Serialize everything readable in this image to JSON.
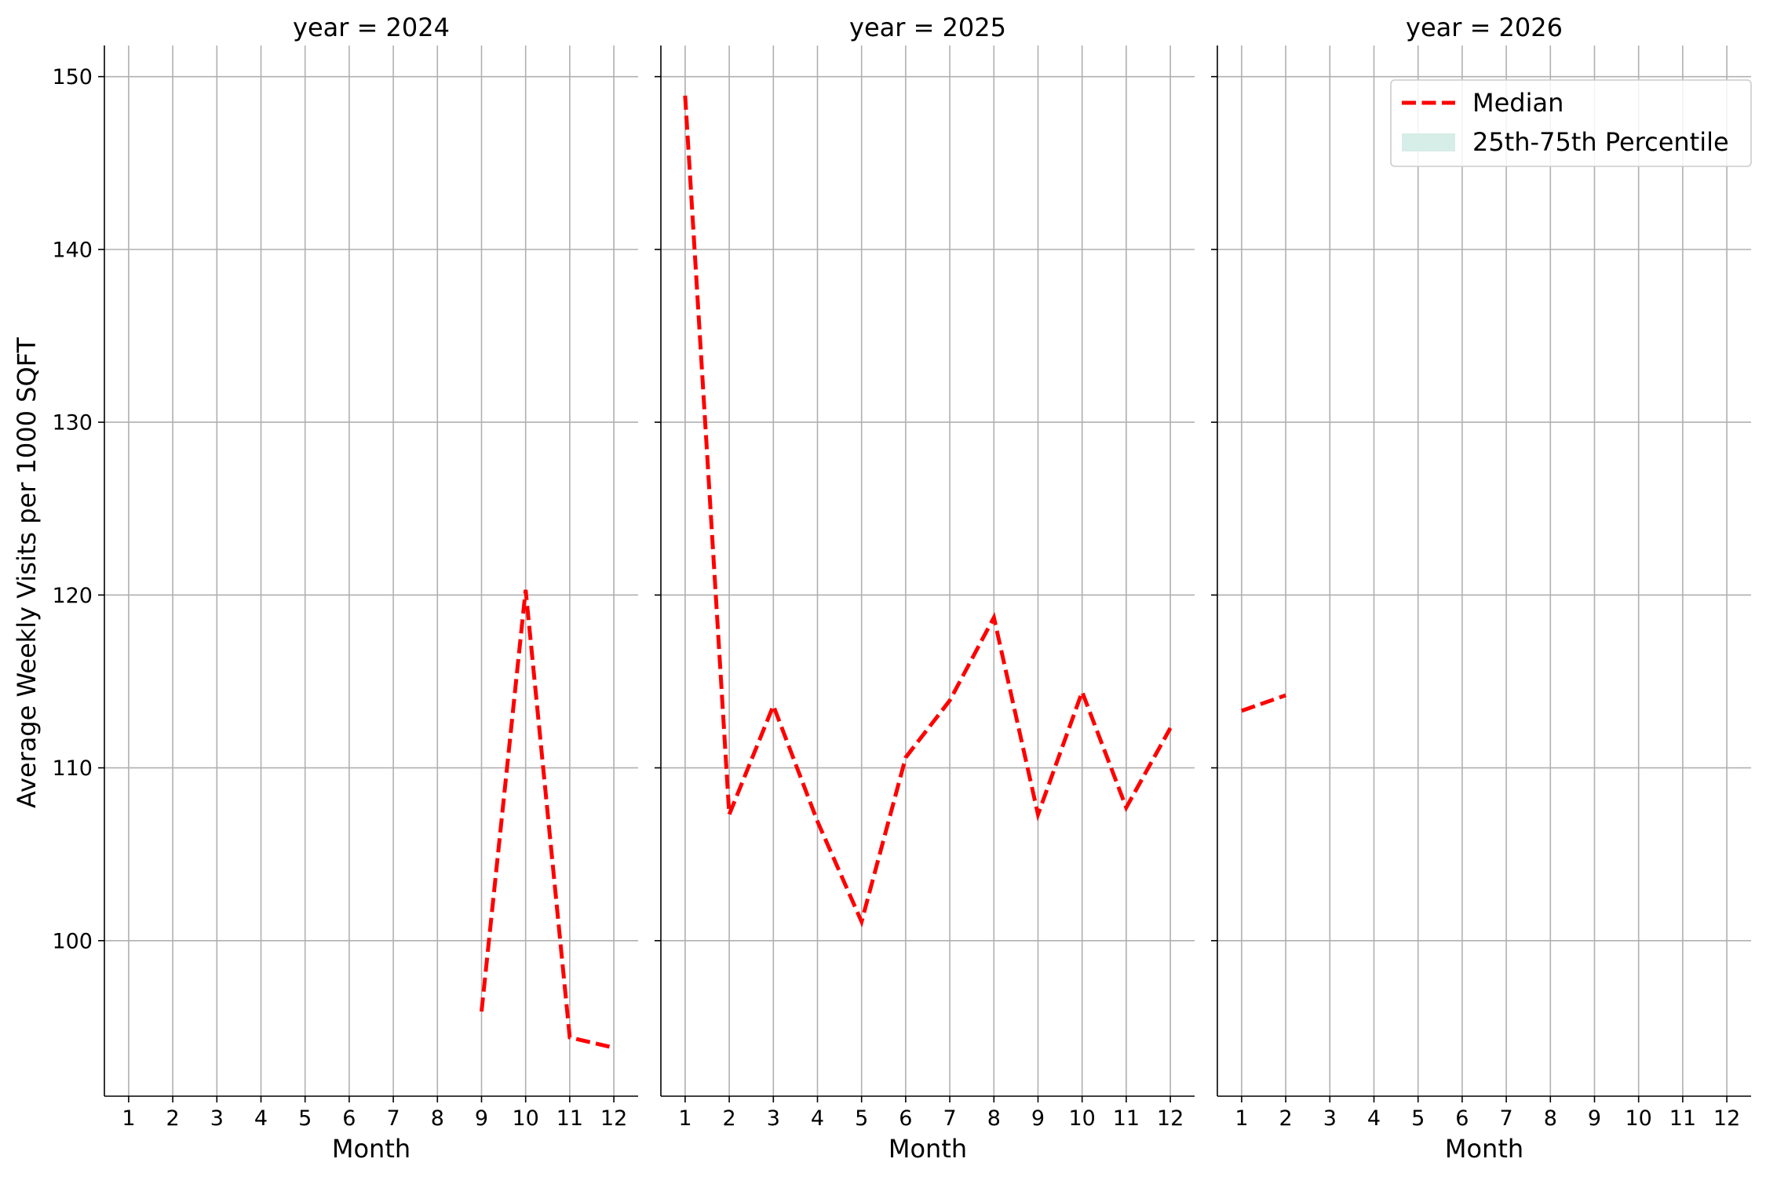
{
  "chart_data": {
    "type": "line",
    "ylabel": "Average Weekly Visits per 1000 SQFT",
    "ylim": [
      91,
      151.8
    ],
    "yticks": [
      100,
      110,
      120,
      130,
      140,
      150
    ],
    "xticks": [
      1,
      2,
      3,
      4,
      5,
      6,
      7,
      8,
      9,
      10,
      11,
      12
    ],
    "xlim": [
      0.45,
      12.55
    ],
    "grid": true,
    "legend": {
      "placement": "top-right",
      "panel": 2,
      "entries": [
        {
          "label": "Median",
          "color": "#ff0000",
          "style": "dashed-line"
        },
        {
          "label": "25th-75th Percentile",
          "color": "#d7ede7",
          "style": "fill"
        }
      ]
    },
    "panels": [
      {
        "title": "year = 2024",
        "xlabel": "Month",
        "series": [
          {
            "name": "Median",
            "x": [
              9,
              10,
              11,
              12
            ],
            "y": [
              95.9,
              120.3,
              94.4,
              93.8
            ]
          }
        ]
      },
      {
        "title": "year = 2025",
        "xlabel": "Month",
        "series": [
          {
            "name": "Median",
            "x": [
              1,
              2,
              3,
              4,
              5,
              6,
              7,
              8,
              9,
              10,
              11,
              12
            ],
            "y": [
              148.9,
              107.3,
              113.6,
              106.9,
              101.1,
              110.6,
              113.9,
              118.7,
              107.3,
              114.4,
              107.7,
              112.3
            ]
          }
        ]
      },
      {
        "title": "year = 2026",
        "xlabel": "Month",
        "series": [
          {
            "name": "Median",
            "x": [
              1,
              2
            ],
            "y": [
              113.3,
              114.2
            ]
          }
        ]
      }
    ]
  }
}
